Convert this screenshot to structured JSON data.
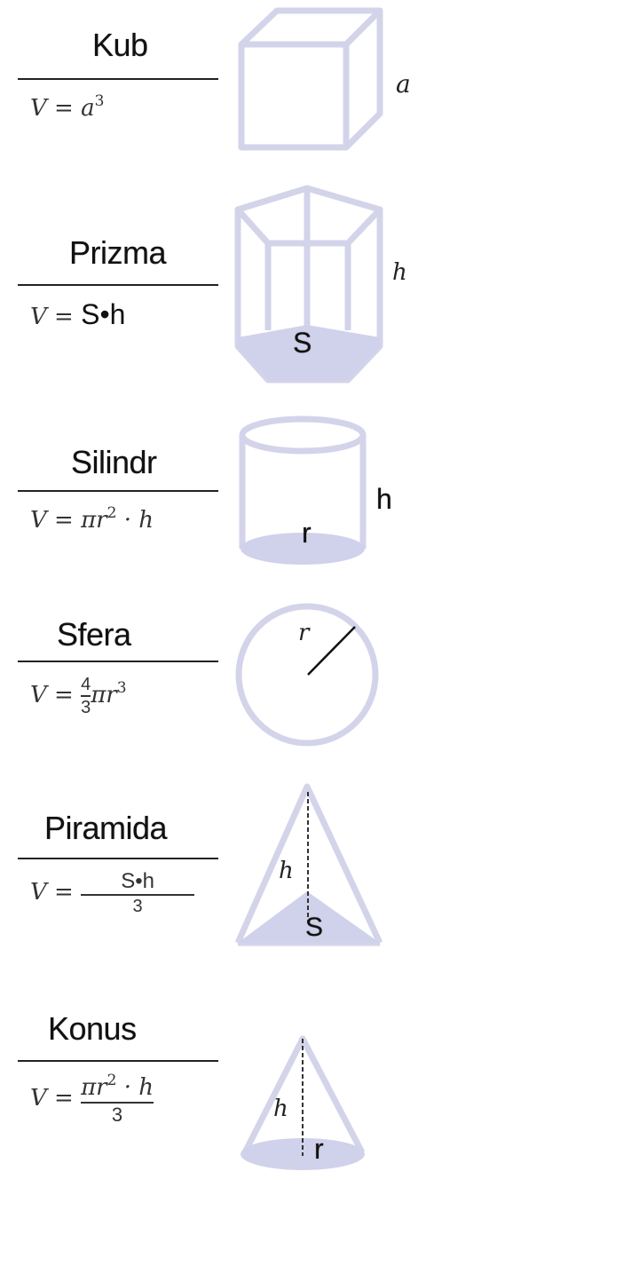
{
  "shapes": [
    {
      "title": "Kub",
      "formula": {
        "lhs": "V =",
        "rhs": "a",
        "exp": "3"
      },
      "dim_label": "a"
    },
    {
      "title": "Prizma",
      "formula": {
        "lhs": "V =",
        "rhs": "S•h"
      },
      "base_label": "S",
      "dim_label": "h"
    },
    {
      "title": "Silindr",
      "formula": {
        "lhs": "V =",
        "rhs_pre": "πr",
        "exp": "2",
        "rhs_post": " · h"
      },
      "dim_label": "h",
      "radius_label": "r"
    },
    {
      "title": "Sfera",
      "formula": {
        "lhs": "V =",
        "num": "4",
        "den": "3",
        "rhs_pre": "πr",
        "exp": "3"
      },
      "radius_label": "r"
    },
    {
      "title": "Piramida",
      "formula": {
        "lhs": "V =",
        "num": "S•h",
        "den": "3"
      },
      "dim_label": "h",
      "base_label": "S"
    },
    {
      "title": "Konus",
      "formula": {
        "lhs": "V =",
        "num_pre": "πr",
        "exp": "2",
        "num_post": " · h",
        "den": "3"
      },
      "dim_label": "h",
      "radius_label": "r"
    }
  ],
  "colors": {
    "figure_stroke": "#d3d4ea",
    "figure_fill": "#d0d1ea",
    "text": "#111111"
  }
}
